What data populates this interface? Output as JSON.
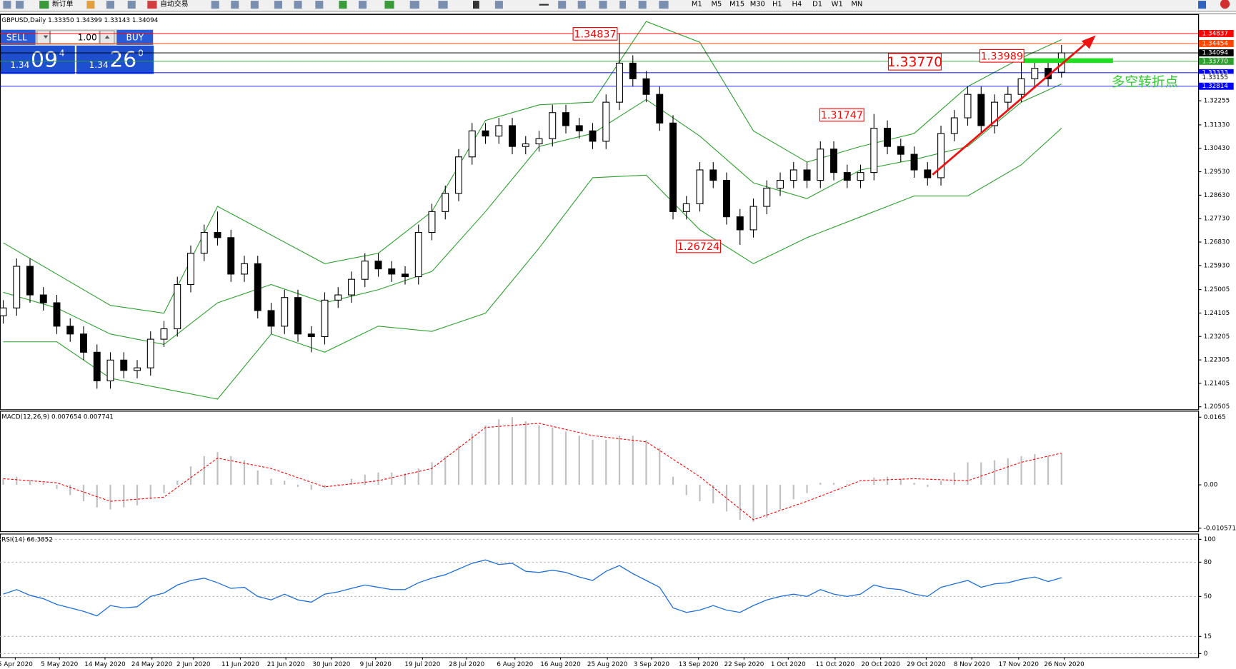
{
  "toolbar": {
    "new_order": "新订单",
    "auto_trading": "自动交易",
    "timeframes": [
      "M1",
      "M5",
      "M15",
      "M30",
      "H1",
      "H4",
      "D1",
      "W1",
      "MN"
    ]
  },
  "trade_panel": {
    "sell": "SELL",
    "lot": "1.00",
    "buy": "BUY",
    "sell_price": [
      "1.34",
      "09",
      "4"
    ],
    "buy_price": [
      "1.34",
      "26",
      "0"
    ]
  },
  "note": "多空转折点",
  "chart_data": [
    {
      "type": "candlestick",
      "header": "GBPUSD,Daily  1.33350 1.34399 1.33143 1.34094",
      "xlim": [
        -0.24,
        89.2
      ],
      "ylim": [
        1.2041,
        1.3558
      ],
      "yticks": [
        {
          "value": 1.32255,
          "label": "1.32255"
        },
        {
          "value": 1.3133,
          "label": "1.31330"
        },
        {
          "value": 1.3043,
          "label": "1.30430"
        },
        {
          "value": 1.2953,
          "label": "1.29530"
        },
        {
          "value": 1.2863,
          "label": "1.28630"
        },
        {
          "value": 1.2773,
          "label": "1.27730"
        },
        {
          "value": 1.2683,
          "label": "1.26830"
        },
        {
          "value": 1.2593,
          "label": "1.25930"
        },
        {
          "value": 1.25005,
          "label": "1.25005"
        },
        {
          "value": 1.24105,
          "label": "1.24105"
        },
        {
          "value": 1.23205,
          "label": "1.23205"
        },
        {
          "value": 1.22305,
          "label": "1.22305"
        },
        {
          "value": 1.21405,
          "label": "1.21405"
        },
        {
          "value": 1.20505,
          "label": "1.20505"
        }
      ],
      "up_color": "#ffffff",
      "down_color": "#000000",
      "wick_color": "#000000",
      "x": [
        0,
        1,
        2,
        3,
        4,
        5,
        6,
        7,
        8,
        9,
        10,
        11,
        12,
        13,
        14,
        15,
        16,
        17,
        18,
        19,
        20,
        21,
        22,
        23,
        24,
        25,
        26,
        27,
        28,
        29,
        30,
        31,
        32,
        33,
        34,
        35,
        36,
        37,
        38,
        39,
        40,
        41,
        42,
        43,
        44,
        45,
        46,
        47,
        48,
        49,
        50,
        51,
        52,
        53,
        54,
        55,
        56,
        57,
        58,
        59,
        60,
        61,
        62,
        63,
        64,
        65,
        66,
        67,
        68,
        69,
        70,
        71,
        72,
        73,
        74,
        75,
        76,
        77,
        78,
        79
      ],
      "open": [
        1.24,
        1.243,
        1.259,
        1.248,
        1.245,
        1.236,
        1.233,
        1.226,
        1.215,
        1.223,
        1.219,
        1.22,
        1.231,
        1.235,
        1.252,
        1.264,
        1.272,
        1.27,
        1.256,
        1.26,
        1.242,
        1.236,
        1.247,
        1.233,
        1.232,
        1.246,
        1.248,
        1.254,
        1.261,
        1.258,
        1.256,
        1.255,
        1.272,
        1.28,
        1.287,
        1.301,
        1.311,
        1.309,
        1.313,
        1.305,
        1.306,
        1.308,
        1.318,
        1.313,
        1.311,
        1.307,
        1.322,
        1.337,
        1.331,
        1.325,
        1.314,
        1.28,
        1.283,
        1.296,
        1.292,
        1.278,
        1.273,
        1.282,
        1.289,
        1.292,
        1.296,
        1.292,
        1.304,
        1.295,
        1.292,
        1.295,
        1.312,
        1.305,
        1.302,
        1.296,
        1.293,
        1.31,
        1.316,
        1.325,
        1.313,
        1.322,
        1.325,
        1.331,
        1.335,
        1.3335
      ],
      "high": [
        1.246,
        1.262,
        1.262,
        1.251,
        1.248,
        1.239,
        1.236,
        1.229,
        1.226,
        1.226,
        1.223,
        1.234,
        1.238,
        1.255,
        1.267,
        1.275,
        1.28,
        1.273,
        1.263,
        1.263,
        1.245,
        1.25,
        1.25,
        1.236,
        1.249,
        1.251,
        1.257,
        1.264,
        1.264,
        1.261,
        1.259,
        1.275,
        1.283,
        1.29,
        1.304,
        1.314,
        1.314,
        1.316,
        1.316,
        1.309,
        1.311,
        1.321,
        1.321,
        1.316,
        1.314,
        1.325,
        1.34837,
        1.34,
        1.334,
        1.328,
        1.317,
        1.286,
        1.299,
        1.299,
        1.295,
        1.281,
        1.285,
        1.292,
        1.295,
        1.299,
        1.299,
        1.307,
        1.307,
        1.298,
        1.298,
        1.31747,
        1.315,
        1.308,
        1.305,
        1.299,
        1.313,
        1.319,
        1.328,
        1.328,
        1.325,
        1.328,
        1.33989,
        1.338,
        1.338,
        1.34399
      ],
      "low": [
        1.237,
        1.24,
        1.245,
        1.242,
        1.233,
        1.23,
        1.223,
        1.212,
        1.212,
        1.216,
        1.216,
        1.217,
        1.228,
        1.232,
        1.249,
        1.261,
        1.267,
        1.253,
        1.253,
        1.239,
        1.233,
        1.233,
        1.23,
        1.226,
        1.229,
        1.243,
        1.245,
        1.251,
        1.255,
        1.253,
        1.252,
        1.252,
        1.269,
        1.277,
        1.284,
        1.298,
        1.306,
        1.306,
        1.302,
        1.302,
        1.303,
        1.305,
        1.31,
        1.308,
        1.304,
        1.304,
        1.319,
        1.328,
        1.322,
        1.311,
        1.277,
        1.277,
        1.28,
        1.289,
        1.275,
        1.26724,
        1.27,
        1.279,
        1.286,
        1.289,
        1.289,
        1.289,
        1.292,
        1.289,
        1.289,
        1.292,
        1.302,
        1.299,
        1.293,
        1.29,
        1.29,
        1.307,
        1.313,
        1.31,
        1.31,
        1.319,
        1.322,
        1.328,
        1.328,
        1.33143
      ],
      "close": [
        1.243,
        1.259,
        1.248,
        1.245,
        1.236,
        1.233,
        1.226,
        1.215,
        1.223,
        1.219,
        1.22,
        1.231,
        1.235,
        1.252,
        1.264,
        1.272,
        1.27,
        1.256,
        1.26,
        1.242,
        1.236,
        1.247,
        1.233,
        1.232,
        1.246,
        1.248,
        1.254,
        1.261,
        1.258,
        1.256,
        1.255,
        1.272,
        1.28,
        1.287,
        1.301,
        1.311,
        1.309,
        1.313,
        1.305,
        1.306,
        1.308,
        1.318,
        1.313,
        1.311,
        1.307,
        1.322,
        1.337,
        1.331,
        1.325,
        1.314,
        1.28,
        1.283,
        1.296,
        1.292,
        1.278,
        1.273,
        1.282,
        1.289,
        1.292,
        1.296,
        1.292,
        1.304,
        1.295,
        1.292,
        1.295,
        1.312,
        1.305,
        1.302,
        1.296,
        1.293,
        1.31,
        1.316,
        1.325,
        1.313,
        1.322,
        1.325,
        1.331,
        1.335,
        1.331,
        1.34094
      ],
      "bands": {
        "color": "#2ca02c",
        "x": [
          0,
          4,
          8,
          12,
          16,
          20,
          24,
          28,
          32,
          36,
          40,
          44,
          48,
          52,
          56,
          60,
          64,
          68,
          72,
          76,
          79
        ],
        "upper": [
          1.268,
          1.256,
          1.244,
          1.241,
          1.282,
          1.271,
          1.26,
          1.264,
          1.28,
          1.315,
          1.321,
          1.322,
          1.353,
          1.345,
          1.311,
          1.299,
          1.305,
          1.31,
          1.328,
          1.339,
          1.346
        ],
        "middle": [
          1.249,
          1.243,
          1.233,
          1.229,
          1.245,
          1.252,
          1.245,
          1.25,
          1.257,
          1.28,
          1.305,
          1.31,
          1.323,
          1.309,
          1.291,
          1.285,
          1.296,
          1.3,
          1.305,
          1.322,
          1.329
        ],
        "lower": [
          1.23,
          1.23,
          1.216,
          1.212,
          1.208,
          1.233,
          1.226,
          1.236,
          1.234,
          1.241,
          1.266,
          1.293,
          1.294,
          1.273,
          1.26,
          1.27,
          1.278,
          1.286,
          1.286,
          1.298,
          1.312
        ]
      },
      "hlines": [
        {
          "value": 1.34837,
          "label": "1.34837",
          "color": "#ff0000",
          "line": true
        },
        {
          "value": 1.34454,
          "label": "1.34454",
          "color": "#ff4500",
          "line": true
        },
        {
          "value": 1.34094,
          "label": "1.34094",
          "color": "#000000",
          "line": true
        },
        {
          "value": 1.3377,
          "label": "1.33770",
          "color": "#2ca02c",
          "line": true
        },
        {
          "value": 1.33333,
          "label": "1.33333",
          "color": "#0000ff",
          "line": true
        },
        {
          "value": 1.33155,
          "label": "1.33155",
          "color": "#ffffff",
          "line": false
        },
        {
          "value": 1.32814,
          "label": "1.32814",
          "color": "#0000ff",
          "line": true
        }
      ],
      "annotations": [
        {
          "text": "1.34837",
          "color": "#ff0000"
        },
        {
          "text": "1.33770",
          "color": "#ff0000"
        },
        {
          "text": "1.33989",
          "color": "#ff0000"
        },
        {
          "text": "1.31747",
          "color": "#ff0000"
        },
        {
          "text": "1.26724",
          "color": "#ff0000"
        }
      ]
    },
    {
      "type": "macd",
      "header": "MACD(12,26,9) 0.007654 0.007741",
      "xlim": [
        -0.24,
        89.2
      ],
      "ylim": [
        -0.01132,
        0.01804
      ],
      "yticks": [
        0.0165,
        {
          "value": 0,
          "label": "0.00"
        },
        -0.010571
      ],
      "histogram": {
        "color": "#c0c0c0",
        "x": [
          0,
          1,
          2,
          3,
          4,
          5,
          6,
          7,
          8,
          9,
          10,
          11,
          12,
          13,
          14,
          15,
          16,
          17,
          18,
          19,
          20,
          21,
          22,
          23,
          24,
          25,
          26,
          27,
          28,
          29,
          30,
          31,
          32,
          33,
          34,
          35,
          36,
          37,
          38,
          39,
          40,
          41,
          42,
          43,
          44,
          45,
          46,
          47,
          48,
          49,
          50,
          51,
          52,
          53,
          54,
          55,
          56,
          57,
          58,
          59,
          60,
          61,
          62,
          63,
          64,
          65,
          66,
          67,
          68,
          69,
          70,
          71,
          72,
          73,
          74,
          75,
          76,
          77,
          78,
          79
        ],
        "values": [
          0.0015,
          0.002,
          0.0012,
          0.0005,
          -0.001,
          -0.0025,
          -0.004,
          -0.0055,
          -0.006,
          -0.0055,
          -0.005,
          -0.0035,
          -0.002,
          0.001,
          0.0045,
          0.007,
          0.008,
          0.007,
          0.006,
          0.0035,
          0.0015,
          0.001,
          -0.0005,
          -0.0012,
          -0.0008,
          0.0002,
          0.0015,
          0.0025,
          0.003,
          0.003,
          0.0028,
          0.004,
          0.0055,
          0.007,
          0.0095,
          0.0125,
          0.0145,
          0.016,
          0.0165,
          0.0155,
          0.0145,
          0.014,
          0.013,
          0.012,
          0.011,
          0.011,
          0.012,
          0.012,
          0.011,
          0.009,
          0.002,
          -0.0025,
          -0.004,
          -0.0045,
          -0.0065,
          -0.0085,
          -0.009,
          -0.008,
          -0.006,
          -0.0035,
          -0.002,
          0.0005,
          0.0005,
          0.0002,
          0,
          0.0018,
          0.002,
          0.0015,
          0.0005,
          -0.0005,
          0.001,
          0.003,
          0.0055,
          0.0055,
          0.006,
          0.0065,
          0.007,
          0.0075,
          0.007,
          0.007654
        ]
      },
      "signal": {
        "color": "#ff0000",
        "x": [
          0,
          4,
          8,
          12,
          16,
          20,
          24,
          28,
          32,
          36,
          40,
          44,
          48,
          52,
          56,
          60,
          64,
          68,
          72,
          76,
          79
        ],
        "values": [
          0.0015,
          0.0005,
          -0.004,
          -0.003,
          0.0065,
          0.004,
          -0.0005,
          0.001,
          0.004,
          0.014,
          0.015,
          0.012,
          0.0105,
          0.002,
          -0.0085,
          -0.004,
          0.001,
          0.0015,
          0.001,
          0.0055,
          0.007741
        ]
      }
    },
    {
      "type": "line",
      "header": "RSI(14) 66.3852",
      "xlim": [
        -0.24,
        89.2
      ],
      "ylim": [
        -3.2,
        105
      ],
      "yticks": [
        100,
        80,
        50,
        15,
        0
      ],
      "grid": true,
      "color": "#1e6fd9",
      "x": [
        0,
        1,
        2,
        3,
        4,
        5,
        6,
        7,
        8,
        9,
        10,
        11,
        12,
        13,
        14,
        15,
        16,
        17,
        18,
        19,
        20,
        21,
        22,
        23,
        24,
        25,
        26,
        27,
        28,
        29,
        30,
        31,
        32,
        33,
        34,
        35,
        36,
        37,
        38,
        39,
        40,
        41,
        42,
        43,
        44,
        45,
        46,
        47,
        48,
        49,
        50,
        51,
        52,
        53,
        54,
        55,
        56,
        57,
        58,
        59,
        60,
        61,
        62,
        63,
        64,
        65,
        66,
        67,
        68,
        69,
        70,
        71,
        72,
        73,
        74,
        75,
        76,
        77,
        78,
        79
      ],
      "values": [
        52,
        56,
        51,
        48,
        43,
        40,
        37,
        33,
        42,
        40,
        41,
        50,
        53,
        60,
        64,
        66,
        62,
        57,
        58,
        50,
        47,
        52,
        47,
        45,
        52,
        54,
        57,
        60,
        58,
        56,
        56,
        62,
        66,
        69,
        74,
        79,
        82,
        78,
        79,
        72,
        71,
        73,
        71,
        67,
        64,
        72,
        77,
        70,
        64,
        58,
        40,
        36,
        38,
        42,
        38,
        36,
        42,
        47,
        50,
        52,
        50,
        56,
        52,
        50,
        52,
        60,
        57,
        56,
        52,
        50,
        58,
        61,
        64,
        58,
        61,
        62,
        65,
        67,
        63,
        66.3852
      ],
      "xticks": [
        {
          "value": 0.9,
          "label": "5 Apr 2020"
        },
        {
          "value": 4.2,
          "label": "5 May 2020"
        },
        {
          "value": 7.6,
          "label": "14 May 2020"
        },
        {
          "value": 11.1,
          "label": "24 May 2020"
        },
        {
          "value": 14.2,
          "label": "2 Jun 2020"
        },
        {
          "value": 17.7,
          "label": "11 Jun 2020"
        },
        {
          "value": 21.1,
          "label": "21 Jun 2020"
        },
        {
          "value": 24.5,
          "label": "30 Jun 2020"
        },
        {
          "value": 27.8,
          "label": "9 Jul 2020"
        },
        {
          "value": 31.3,
          "label": "19 Jul 2020"
        },
        {
          "value": 34.6,
          "label": "28 Jul 2020"
        },
        {
          "value": 38.2,
          "label": "6 Aug 2020"
        },
        {
          "value": 41.6,
          "label": "16 Aug 2020"
        },
        {
          "value": 45.1,
          "label": "25 Aug 2020"
        },
        {
          "value": 48.4,
          "label": "3 Sep 2020"
        },
        {
          "value": 51.9,
          "label": "13 Sep 2020"
        },
        {
          "value": 55.3,
          "label": "22 Sep 2020"
        },
        {
          "value": 58.6,
          "label": "1 Oct 2020"
        },
        {
          "value": 62.1,
          "label": "11 Oct 2020"
        },
        {
          "value": 65.5,
          "label": "20 Oct 2020"
        },
        {
          "value": 68.9,
          "label": "29 Oct 2020"
        },
        {
          "value": 72.3,
          "label": "8 Nov 2020"
        },
        {
          "value": 75.8,
          "label": "17 Nov 2020"
        },
        {
          "value": 79.2,
          "label": "26 Nov 2020"
        }
      ]
    }
  ]
}
